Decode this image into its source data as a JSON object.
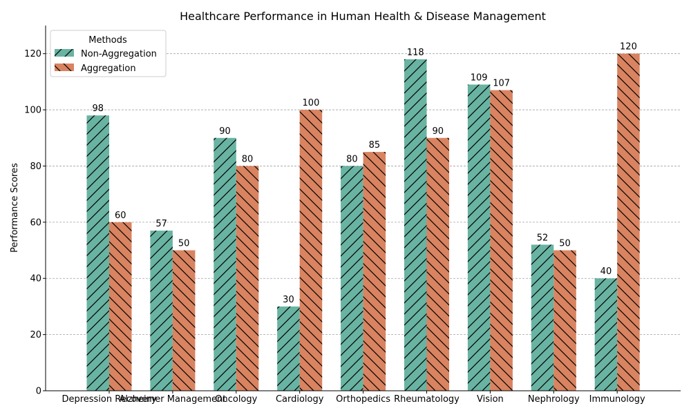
{
  "chart_data": {
    "type": "bar",
    "title": "Healthcare Performance in Human Health & Disease Management",
    "xlabel": "",
    "ylabel": "Performance Scores",
    "categories": [
      "Depression Recovery",
      "Alzheimer Management",
      "Oncology",
      "Cardiology",
      "Orthopedics",
      "Rheumatology",
      "Vision",
      "Nephrology",
      "Immunology"
    ],
    "series": [
      {
        "name": "Non-Aggregation",
        "values": [
          98,
          57,
          90,
          30,
          80,
          118,
          109,
          52,
          40
        ],
        "color": "#69b3a2",
        "hatch": "forward-diagonal"
      },
      {
        "name": "Aggregation",
        "values": [
          60,
          50,
          80,
          100,
          85,
          90,
          107,
          50,
          120
        ],
        "color": "#d98360",
        "hatch": "back-diagonal"
      }
    ],
    "ylim": [
      0,
      130
    ],
    "yticks": [
      0,
      20,
      40,
      60,
      80,
      100,
      120
    ],
    "grid": "y-dashed",
    "legend": {
      "title": "Methods",
      "placement": "top-left"
    },
    "data_labels": true
  }
}
